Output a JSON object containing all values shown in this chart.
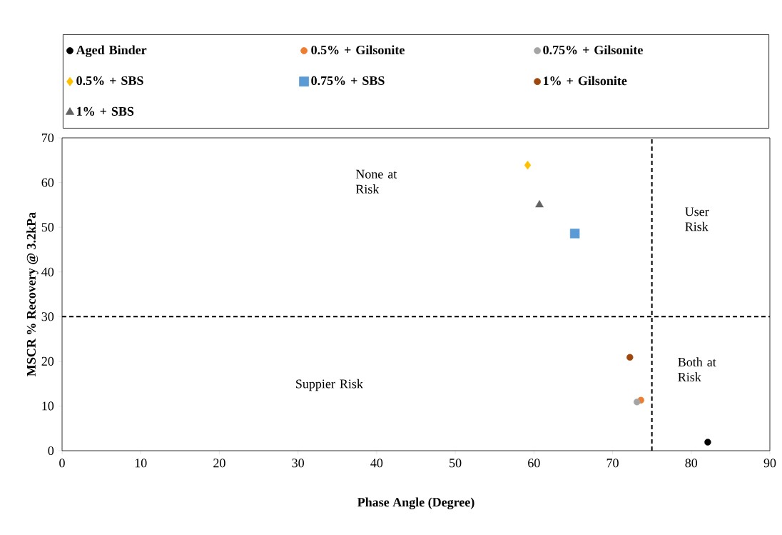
{
  "chart_data": {
    "type": "scatter",
    "xlabel": "Phase Angle (Degree)",
    "ylabel": "MSCR % Recovery @ 3.2kPa",
    "xlim": [
      0,
      90
    ],
    "xticks": [
      0,
      10,
      20,
      30,
      40,
      50,
      60,
      70,
      80,
      90
    ],
    "ylim": [
      0,
      70
    ],
    "yticks": [
      0,
      10,
      20,
      30,
      40,
      50,
      60,
      70
    ],
    "legend": "top",
    "grid": false,
    "series": [
      {
        "name": "Aged Binder",
        "color": "#000000",
        "marker": "circle",
        "x": [
          82.1
        ],
        "values": [
          1.9
        ]
      },
      {
        "name": "0.5% + Gilsonite",
        "color": "#ed7d31",
        "marker": "circle",
        "x": [
          73.6
        ],
        "values": [
          11.3
        ]
      },
      {
        "name": "0.75% + Gilsonite",
        "color": "#a5a5a5",
        "marker": "circle",
        "x": [
          73.1
        ],
        "values": [
          10.9
        ]
      },
      {
        "name": "0.5% + SBS",
        "color": "#ffc000",
        "marker": "diamond",
        "x": [
          59.2
        ],
        "values": [
          63.9
        ]
      },
      {
        "name": "0.75% + SBS",
        "color": "#5b9bd5",
        "marker": "square",
        "x": [
          65.2
        ],
        "values": [
          48.6
        ]
      },
      {
        "name": "1% + Gilsonite",
        "color": "#9e480e",
        "marker": "circle",
        "x": [
          72.2
        ],
        "values": [
          20.9
        ]
      },
      {
        "name": "1% + SBS",
        "color": "#636363",
        "marker": "triangle",
        "x": [
          60.7
        ],
        "values": [
          55.0
        ]
      }
    ],
    "ref_lines": [
      {
        "axis": "x",
        "value": 75,
        "line_style": "dashed",
        "color": "#000000"
      },
      {
        "axis": "y",
        "value": 30,
        "line_style": "dashed",
        "color": "#000000"
      }
    ],
    "annotations": [
      "None at Risk",
      "User Risk",
      "Suppier Risk",
      "Both at Risk"
    ]
  }
}
